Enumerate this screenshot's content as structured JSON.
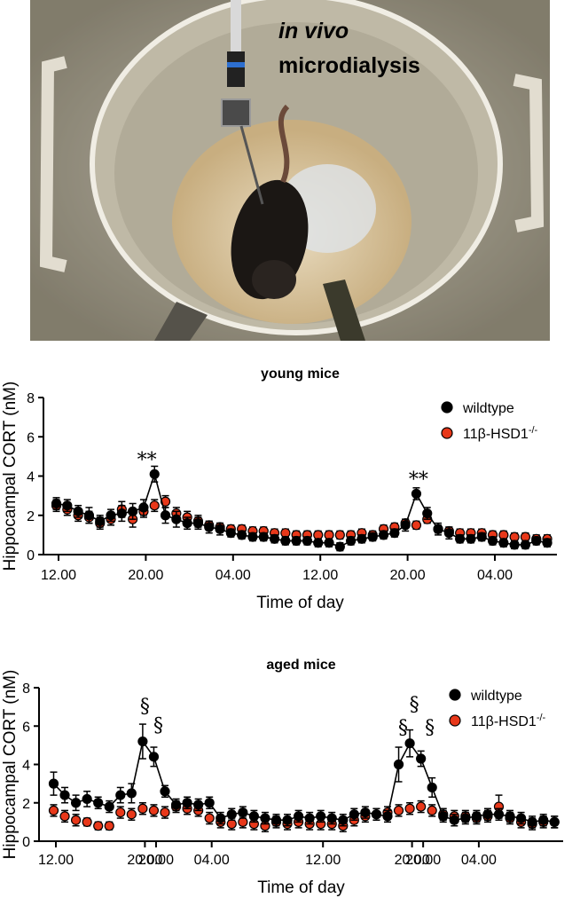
{
  "photo": {
    "caption_line1": "in vivo",
    "caption_line2": "microdialysis"
  },
  "chart_data": [
    {
      "type": "line",
      "title": "young mice",
      "xlabel": "Time of day",
      "ylabel": "Hippocampal CORT (nM)",
      "ylim": [
        0,
        8
      ],
      "yticks": [
        "0",
        "2",
        "4",
        "6",
        "8"
      ],
      "xticks": [
        "12.00",
        "20.00",
        "04.00",
        "12.00",
        "20.00",
        "04.00"
      ],
      "xtick_positions_h": [
        0,
        8,
        16,
        24,
        32,
        40
      ],
      "x_start_h": -0.2,
      "x_step_h": 1,
      "series": [
        {
          "name": "wildtype",
          "color": "#000000",
          "values": [
            2.6,
            2.5,
            2.2,
            2.0,
            1.7,
            2.0,
            2.1,
            2.2,
            2.4,
            4.1,
            2.0,
            1.8,
            1.6,
            1.6,
            1.4,
            1.3,
            1.1,
            1.0,
            0.9,
            0.9,
            0.8,
            0.7,
            0.7,
            0.7,
            0.6,
            0.6,
            0.4,
            0.7,
            0.8,
            0.9,
            1.0,
            1.1,
            1.5,
            3.1,
            2.1,
            1.3,
            1.1,
            0.8,
            0.8,
            0.9,
            0.7,
            0.6,
            0.5,
            0.5,
            0.7,
            0.6
          ],
          "errors": [
            0.3,
            0.3,
            0.3,
            0.4,
            0.3,
            0.3,
            0.4,
            0.4,
            0.4,
            0.4,
            0.4,
            0.4,
            0.3,
            0.3,
            0.3,
            0.3,
            0.2,
            0.2,
            0.2,
            0.2,
            0.2,
            0.2,
            0.2,
            0.2,
            0.2,
            0.2,
            0.2,
            0.2,
            0.2,
            0.2,
            0.2,
            0.2,
            0.3,
            0.3,
            0.3,
            0.3,
            0.3,
            0.2,
            0.2,
            0.2,
            0.2,
            0.2,
            0.2,
            0.2,
            0.2,
            0.2
          ]
        },
        {
          "name": "11β-HSD1",
          "superscript": "-/-",
          "color": "#e8381a",
          "values": [
            2.5,
            2.3,
            2.0,
            1.9,
            1.6,
            1.8,
            2.3,
            1.8,
            2.2,
            2.5,
            2.7,
            2.1,
            1.9,
            1.7,
            1.5,
            1.4,
            1.3,
            1.3,
            1.2,
            1.2,
            1.1,
            1.1,
            1.0,
            1.0,
            1.0,
            1.0,
            1.0,
            1.0,
            1.1,
            1.0,
            1.3,
            1.4,
            1.6,
            1.5,
            1.8,
            1.3,
            1.2,
            1.1,
            1.1,
            1.1,
            1.0,
            1.0,
            0.9,
            0.9,
            0.8,
            0.8
          ],
          "errors": [
            0.3,
            0.3,
            0.3,
            0.3,
            0.3,
            0.3,
            0.4,
            0.4,
            0.3,
            0.3,
            0.3,
            0.3,
            0.3,
            0.3,
            0.2,
            0.2,
            0.2,
            0.2,
            0.2,
            0.2,
            0.2,
            0.2,
            0.2,
            0.2,
            0.2,
            0.2,
            0.2,
            0.2,
            0.2,
            0.2,
            0.2,
            0.2,
            0.2,
            0.2,
            0.2,
            0.2,
            0.2,
            0.2,
            0.2,
            0.2,
            0.2,
            0.2,
            0.2,
            0.2,
            0.2,
            0.2
          ]
        }
      ],
      "annotations": [
        {
          "text": "**",
          "x_h": 8.1,
          "y": 4.5
        },
        {
          "text": "**",
          "x_h": 33.0,
          "y": 3.5
        }
      ]
    },
    {
      "type": "line",
      "title": "aged mice",
      "xlabel": "Time of day",
      "ylabel": "Hippocampal CORT (nM)",
      "ylim": [
        0,
        8
      ],
      "yticks": [
        "0",
        "2",
        "4",
        "6",
        "8"
      ],
      "xticks": [
        "12.00",
        "20.00",
        "20.00",
        "04.00",
        "12.00",
        "20.00",
        "20.00",
        "04.00"
      ],
      "xtick_positions_h": [
        0,
        8,
        9,
        14,
        24,
        32,
        33,
        38
      ],
      "x_start_h": -0.2,
      "x_step_h": 1,
      "series": [
        {
          "name": "wildtype",
          "color": "#000000",
          "values": [
            3.0,
            2.4,
            2.0,
            2.2,
            2.0,
            1.8,
            2.4,
            2.5,
            5.2,
            4.4,
            2.6,
            1.9,
            2.0,
            1.9,
            2.0,
            1.2,
            1.4,
            1.5,
            1.3,
            1.2,
            1.1,
            1.1,
            1.3,
            1.2,
            1.3,
            1.2,
            1.1,
            1.4,
            1.5,
            1.4,
            1.3,
            4.0,
            5.1,
            4.3,
            2.8,
            1.3,
            1.1,
            1.2,
            1.3,
            1.4,
            1.4,
            1.3,
            1.2,
            1.0,
            1.1,
            1.0
          ],
          "errors": [
            0.6,
            0.4,
            0.4,
            0.4,
            0.3,
            0.3,
            0.4,
            0.5,
            0.9,
            0.5,
            0.3,
            0.3,
            0.3,
            0.3,
            0.3,
            0.3,
            0.3,
            0.3,
            0.3,
            0.3,
            0.3,
            0.3,
            0.3,
            0.3,
            0.3,
            0.3,
            0.3,
            0.3,
            0.3,
            0.3,
            0.3,
            0.9,
            0.7,
            0.4,
            0.5,
            0.3,
            0.3,
            0.3,
            0.3,
            0.3,
            0.3,
            0.3,
            0.3,
            0.3,
            0.3,
            0.3
          ]
        },
        {
          "name": "11β-HSD1",
          "superscript": "-/-",
          "color": "#e8381a",
          "values": [
            1.6,
            1.3,
            1.1,
            1.0,
            0.8,
            0.8,
            1.5,
            1.4,
            1.7,
            1.6,
            1.5,
            1.8,
            1.7,
            1.6,
            1.2,
            1.0,
            0.9,
            1.0,
            0.9,
            0.8,
            1.0,
            0.9,
            1.0,
            0.9,
            0.9,
            0.9,
            0.8,
            1.1,
            1.3,
            1.4,
            1.5,
            1.6,
            1.7,
            1.8,
            1.6,
            1.4,
            1.3,
            1.3,
            1.2,
            1.3,
            1.8,
            1.2,
            1.0,
            0.9,
            1.0,
            1.0
          ],
          "errors": [
            0.3,
            0.3,
            0.3,
            0.2,
            0.2,
            0.2,
            0.3,
            0.3,
            0.3,
            0.3,
            0.3,
            0.3,
            0.3,
            0.3,
            0.3,
            0.3,
            0.3,
            0.3,
            0.3,
            0.3,
            0.3,
            0.3,
            0.3,
            0.3,
            0.3,
            0.3,
            0.3,
            0.3,
            0.3,
            0.3,
            0.3,
            0.3,
            0.3,
            0.3,
            0.3,
            0.3,
            0.3,
            0.3,
            0.3,
            0.3,
            0.6,
            0.3,
            0.3,
            0.3,
            0.3,
            0.3
          ]
        }
      ],
      "annotations": [
        {
          "text": "§",
          "x_h": 8.0,
          "y": 6.7
        },
        {
          "text": "§",
          "x_h": 9.2,
          "y": 5.7
        },
        {
          "text": "§",
          "x_h": 31.2,
          "y": 5.6
        },
        {
          "text": "§",
          "x_h": 32.2,
          "y": 6.8
        },
        {
          "text": "§",
          "x_h": 33.6,
          "y": 5.6
        }
      ]
    }
  ]
}
